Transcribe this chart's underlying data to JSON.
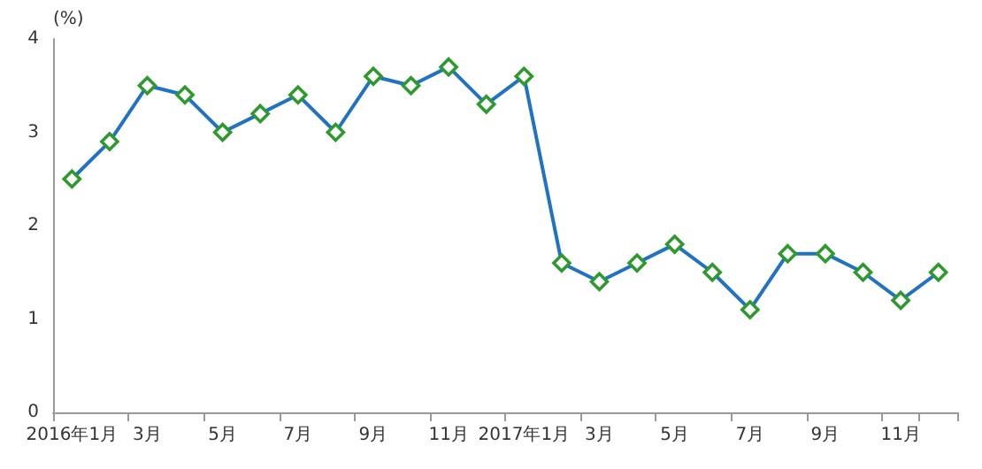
{
  "chart_data": {
    "type": "line",
    "ylabel": "(%)",
    "categories": [
      "2016年1月",
      null,
      "3月",
      null,
      "5月",
      null,
      "7月",
      null,
      "9月",
      null,
      "11月",
      null,
      "2017年1月",
      null,
      "3月",
      null,
      "5月",
      null,
      "7月",
      null,
      "9月",
      null,
      "11月",
      null
    ],
    "series": [
      {
        "color": "#1f72c4",
        "values": [
          2.5,
          2.9,
          3.5,
          3.4,
          3.0,
          3.2,
          3.4,
          3.0,
          3.6,
          3.5,
          3.7,
          3.3,
          3.6,
          1.6,
          1.4,
          1.6,
          1.8,
          1.5,
          1.1,
          1.7,
          1.7,
          1.5,
          1.2,
          1.5
        ]
      }
    ],
    "ylim": [
      0,
      4
    ],
    "yticks": [
      0,
      1,
      2,
      3,
      4
    ],
    "grid": false,
    "marker": "diamond",
    "line_style": "solid"
  }
}
